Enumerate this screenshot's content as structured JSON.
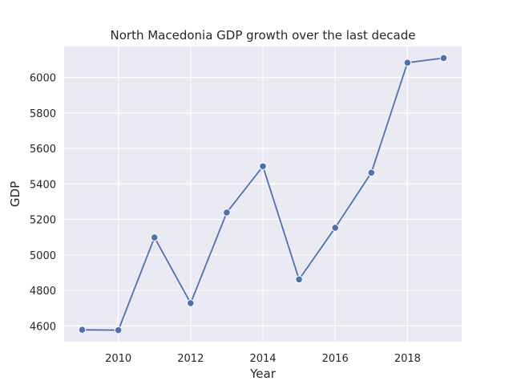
{
  "chart_data": {
    "type": "line",
    "title": "North Macedonia GDP growth over the last decade",
    "xlabel": "Year",
    "ylabel": "GDP",
    "x": [
      2009,
      2010,
      2011,
      2012,
      2013,
      2014,
      2015,
      2016,
      2017,
      2018,
      2019
    ],
    "series": [
      {
        "values": [
          4578,
          4576,
          5098,
          4728,
          5239,
          5499,
          4862,
          5153,
          5463,
          6083,
          6109
        ]
      }
    ],
    "xticks": [
      "2010",
      "2012",
      "2014",
      "2016",
      "2018"
    ],
    "yticks": [
      "4600",
      "4800",
      "5000",
      "5200",
      "5400",
      "5600",
      "5800",
      "6000"
    ],
    "xlim": [
      2008.5,
      2019.5
    ],
    "ylim": [
      4511,
      6174
    ],
    "grid": true,
    "colors": {
      "background": "#eaeaf2",
      "grid": "#ffffff",
      "line": "#4c72b0",
      "marker_edge": "#ffffff"
    }
  }
}
